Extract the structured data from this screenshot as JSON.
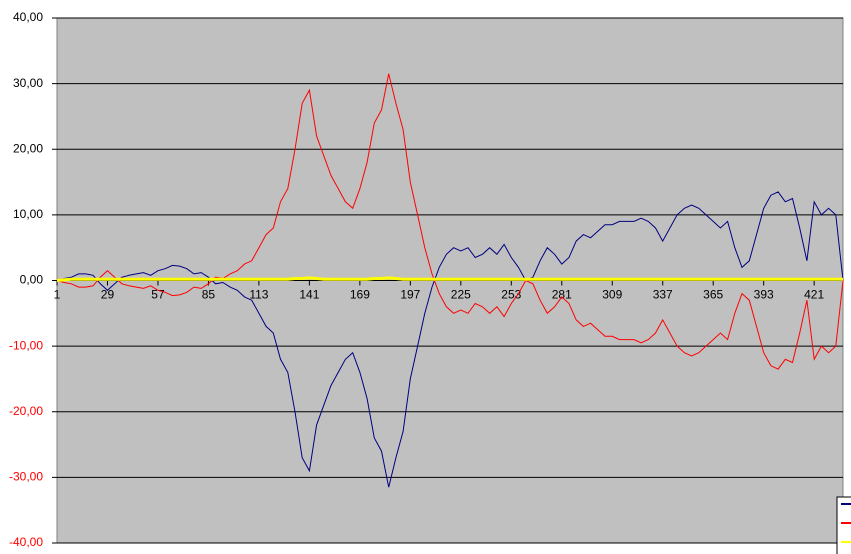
{
  "chart_data": {
    "type": "line",
    "x": [
      1,
      5,
      9,
      13,
      17,
      21,
      25,
      29,
      33,
      37,
      41,
      45,
      49,
      53,
      57,
      61,
      65,
      69,
      73,
      77,
      81,
      85,
      89,
      93,
      97,
      101,
      105,
      109,
      113,
      117,
      121,
      125,
      129,
      133,
      137,
      141,
      145,
      149,
      153,
      157,
      161,
      165,
      169,
      173,
      177,
      181,
      185,
      189,
      193,
      197,
      201,
      205,
      209,
      213,
      217,
      221,
      225,
      229,
      233,
      237,
      241,
      245,
      249,
      253,
      257,
      261,
      265,
      269,
      273,
      277,
      281,
      285,
      289,
      293,
      297,
      301,
      305,
      309,
      313,
      317,
      321,
      325,
      329,
      333,
      337,
      341,
      345,
      349,
      353,
      357,
      361,
      365,
      369,
      373,
      377,
      381,
      385,
      389,
      393,
      397,
      401,
      405,
      409,
      413,
      417,
      421,
      425,
      429,
      433,
      437
    ],
    "series": [
      {
        "color": "#000080",
        "values": [
          0,
          0.3,
          0.5,
          1,
          1,
          0.8,
          -0.5,
          -1.5,
          -0.5,
          0.5,
          0.8,
          1,
          1.2,
          0.8,
          1.5,
          1.8,
          2.3,
          2.2,
          1.8,
          1,
          1.2,
          0.5,
          -0.5,
          -0.3,
          -1,
          -1.5,
          -2.5,
          -3,
          -5,
          -7,
          -8,
          -12,
          -14,
          -20,
          -27,
          -29,
          -22,
          -19,
          -16,
          -14,
          -12,
          -11,
          -14,
          -18,
          -24,
          -26,
          -31.5,
          -27,
          -23,
          -15,
          -10,
          -5,
          -1,
          2,
          4,
          5,
          4.5,
          5,
          3.5,
          4,
          5,
          4,
          5.5,
          3.5,
          2,
          0,
          0.5,
          3,
          5,
          4,
          2.5,
          3.5,
          6,
          7,
          6.5,
          7.5,
          8.5,
          8.5,
          9,
          9,
          9,
          9.5,
          9,
          8,
          6,
          8,
          10,
          11,
          11.5,
          11,
          10,
          9,
          8,
          9,
          5,
          2,
          3,
          7,
          11,
          13,
          13.5,
          12,
          12.5,
          8,
          3,
          12,
          10,
          11,
          10,
          0
        ]
      },
      {
        "color": "#ff0000",
        "values": [
          0,
          -0.3,
          -0.5,
          -1,
          -1,
          -0.8,
          0.5,
          1.5,
          0.5,
          -0.5,
          -0.8,
          -1,
          -1.2,
          -0.8,
          -1.5,
          -1.8,
          -2.3,
          -2.2,
          -1.8,
          -1,
          -1.2,
          -0.5,
          0.5,
          0.3,
          1,
          1.5,
          2.5,
          3,
          5,
          7,
          8,
          12,
          14,
          20,
          27,
          29,
          22,
          19,
          16,
          14,
          12,
          11,
          14,
          18,
          24,
          26,
          31.5,
          27,
          23,
          15,
          10,
          5,
          1,
          -2,
          -4,
          -5,
          -4.5,
          -5,
          -3.5,
          -4,
          -5,
          -4,
          -5.5,
          -3.5,
          -2,
          0,
          -0.5,
          -3,
          -5,
          -4,
          -2.5,
          -3.5,
          -6,
          -7,
          -6.5,
          -7.5,
          -8.5,
          -8.5,
          -9,
          -9,
          -9,
          -9.5,
          -9,
          -8,
          -6,
          -8,
          -10,
          -11,
          -11.5,
          -11,
          -10,
          -9,
          -8,
          -9,
          -5,
          -2,
          -3,
          -7,
          -11,
          -13,
          -13.5,
          -12,
          -12.5,
          -8,
          -3,
          -12,
          -10,
          -11,
          -10,
          0
        ]
      },
      {
        "color": "#ffff00",
        "values": [
          0,
          0.1,
          0.2,
          0.2,
          0.2,
          0.2,
          0.2,
          0.2,
          0.2,
          0.2,
          0.2,
          0.2,
          0.2,
          0.2,
          0.2,
          0.2,
          0.2,
          0.2,
          0.2,
          0.2,
          0.2,
          0.2,
          0.2,
          0.2,
          0.2,
          0.2,
          0.2,
          0.2,
          0.2,
          0.2,
          0.2,
          0.2,
          0.2,
          0.3,
          0.3,
          0.4,
          0.3,
          0.2,
          0.2,
          0.2,
          0.2,
          0.2,
          0.2,
          0.2,
          0.3,
          0.3,
          0.4,
          0.3,
          0.2,
          0.2,
          0.2,
          0.2,
          0.2,
          0.2,
          0.2,
          0.2,
          0.2,
          0.2,
          0.2,
          0.2,
          0.2,
          0.2,
          0.2,
          0.2,
          0.2,
          0.2,
          0.2,
          0.2,
          0.2,
          0.2,
          0.2,
          0.2,
          0.2,
          0.2,
          0.2,
          0.2,
          0.2,
          0.2,
          0.2,
          0.2,
          0.2,
          0.2,
          0.2,
          0.2,
          0.2,
          0.2,
          0.2,
          0.2,
          0.2,
          0.2,
          0.2,
          0.2,
          0.2,
          0.2,
          0.2,
          0.2,
          0.2,
          0.2,
          0.2,
          0.2,
          0.2,
          0.2,
          0.2,
          0.2,
          0.2,
          0.2,
          0.2,
          0.2,
          0.2,
          0.2
        ]
      }
    ],
    "xlim": [
      1,
      437
    ],
    "xticks": [
      1,
      29,
      57,
      85,
      113,
      141,
      169,
      197,
      225,
      253,
      281,
      309,
      337,
      365,
      393,
      421
    ],
    "ylim": [
      -40,
      40
    ],
    "yticks": [
      {
        "value": -40,
        "label": "-40,00"
      },
      {
        "value": -30,
        "label": "-30,00"
      },
      {
        "value": -20,
        "label": "-20,00"
      },
      {
        "value": -10,
        "label": "-10,00"
      },
      {
        "value": 0,
        "label": "0,00"
      },
      {
        "value": 10,
        "label": "10,00"
      },
      {
        "value": 20,
        "label": "20,00"
      },
      {
        "value": 30,
        "label": "30,00"
      },
      {
        "value": 40,
        "label": "40,00"
      }
    ],
    "negative_label_color": "#ff0000",
    "plot_color": "#c0c0c0",
    "grid": true
  }
}
